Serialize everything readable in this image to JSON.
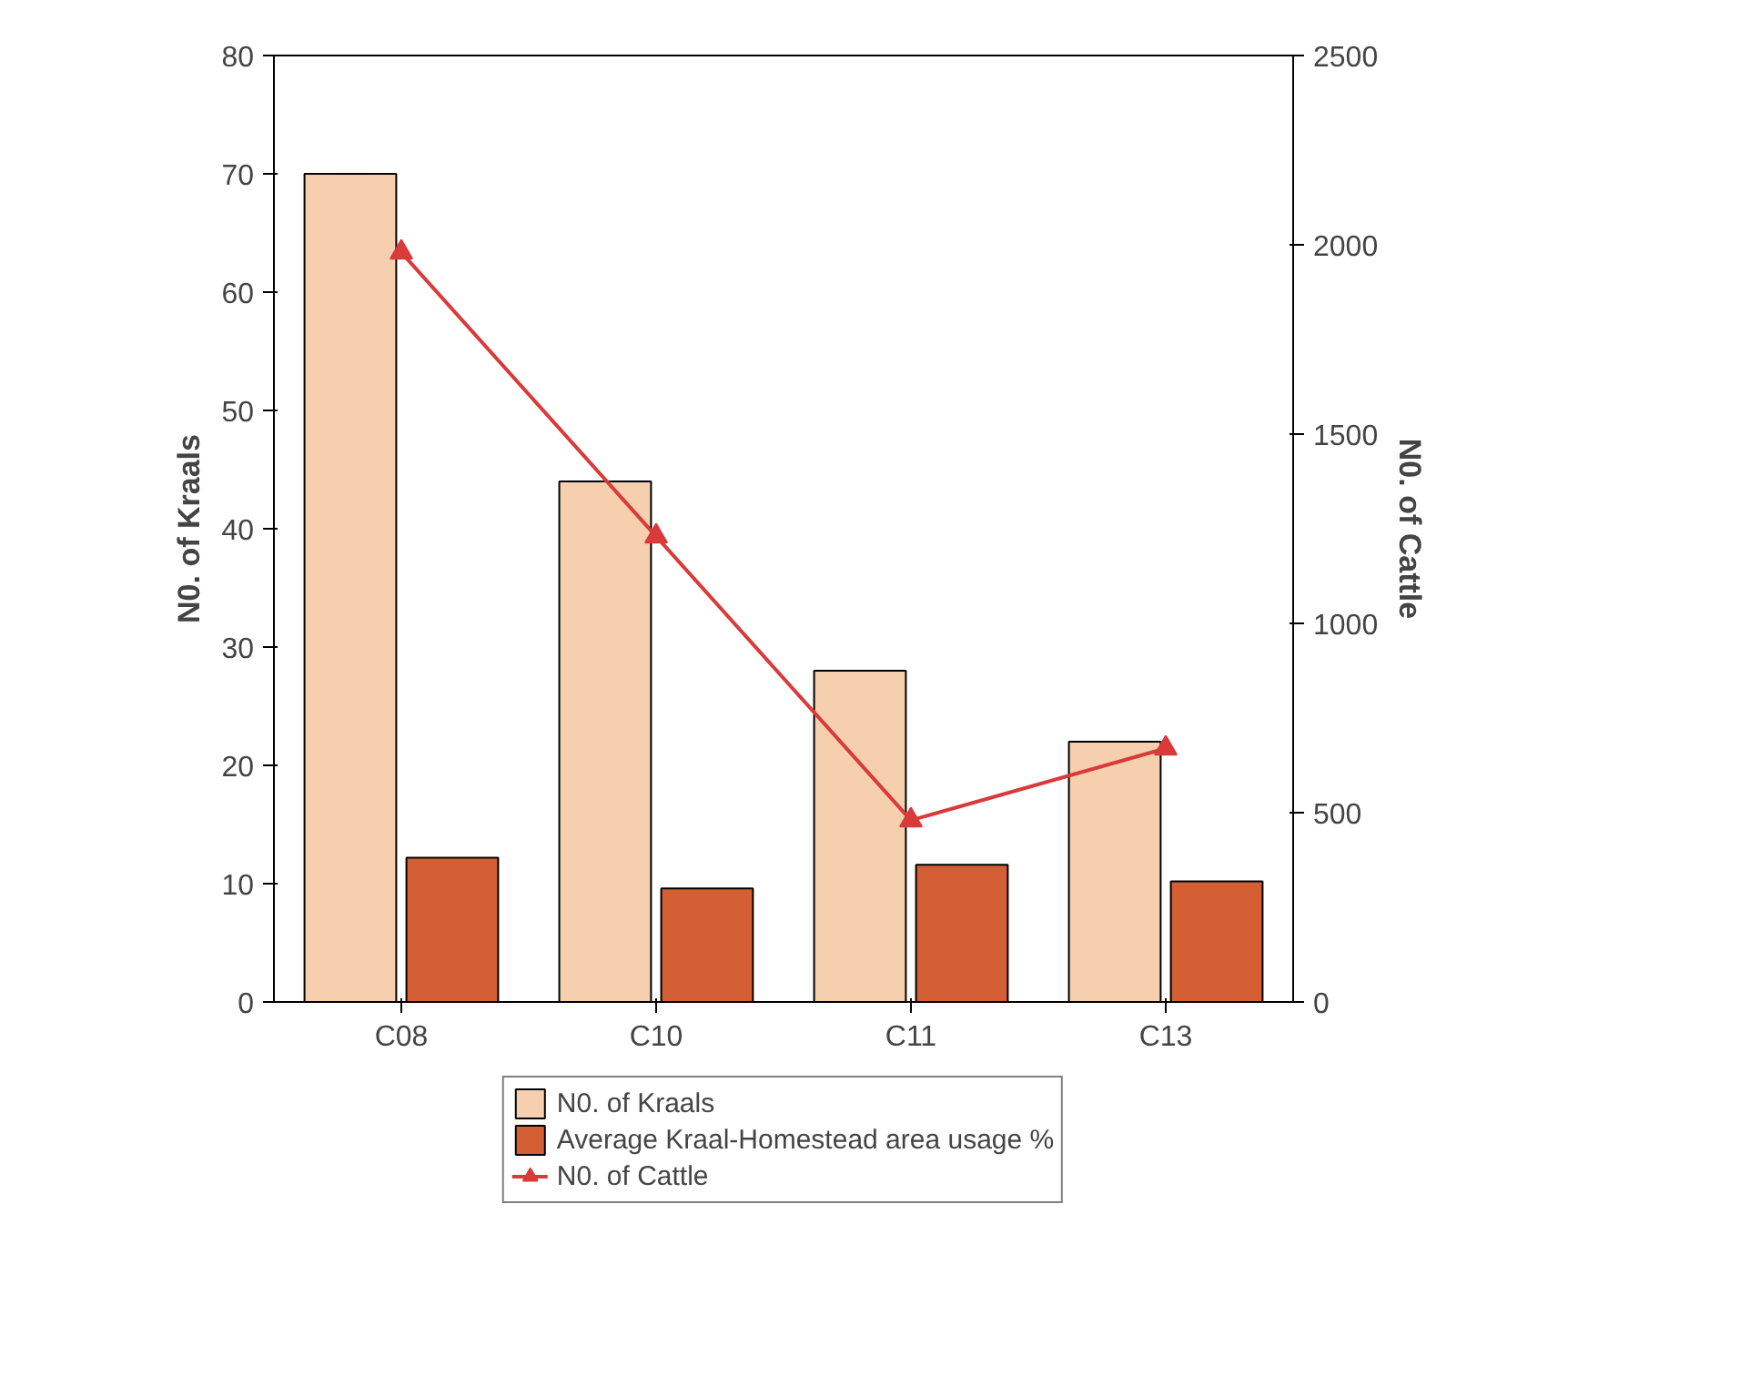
{
  "chart_data": {
    "type": "bar",
    "categories": [
      "C08",
      "C10",
      "C11",
      "C13"
    ],
    "ylabel": "N0. of Kraals",
    "y2label": "N0. of Cattle",
    "ylim": [
      0,
      80
    ],
    "yticks": [
      0,
      10,
      20,
      30,
      40,
      50,
      60,
      70,
      80
    ],
    "y2lim": [
      0,
      2500
    ],
    "y2ticks": [
      0,
      500,
      1000,
      1500,
      2000,
      2500
    ],
    "grid": false,
    "legend": "bottom",
    "series": [
      {
        "name": "N0. of Kraals",
        "color": "#f5cfae",
        "values": [
          70,
          44,
          28,
          22
        ]
      },
      {
        "name": "Average Kraal-Homestead area usage %",
        "color": "#d45f35",
        "values": [
          12.2,
          9.6,
          11.6,
          10.2
        ]
      },
      {
        "name": "N0. of Cattle",
        "type": "line",
        "axis": "y2",
        "color": "#d93a3a",
        "marker": "triangle",
        "values": [
          1980,
          1230,
          480,
          670
        ]
      }
    ]
  }
}
